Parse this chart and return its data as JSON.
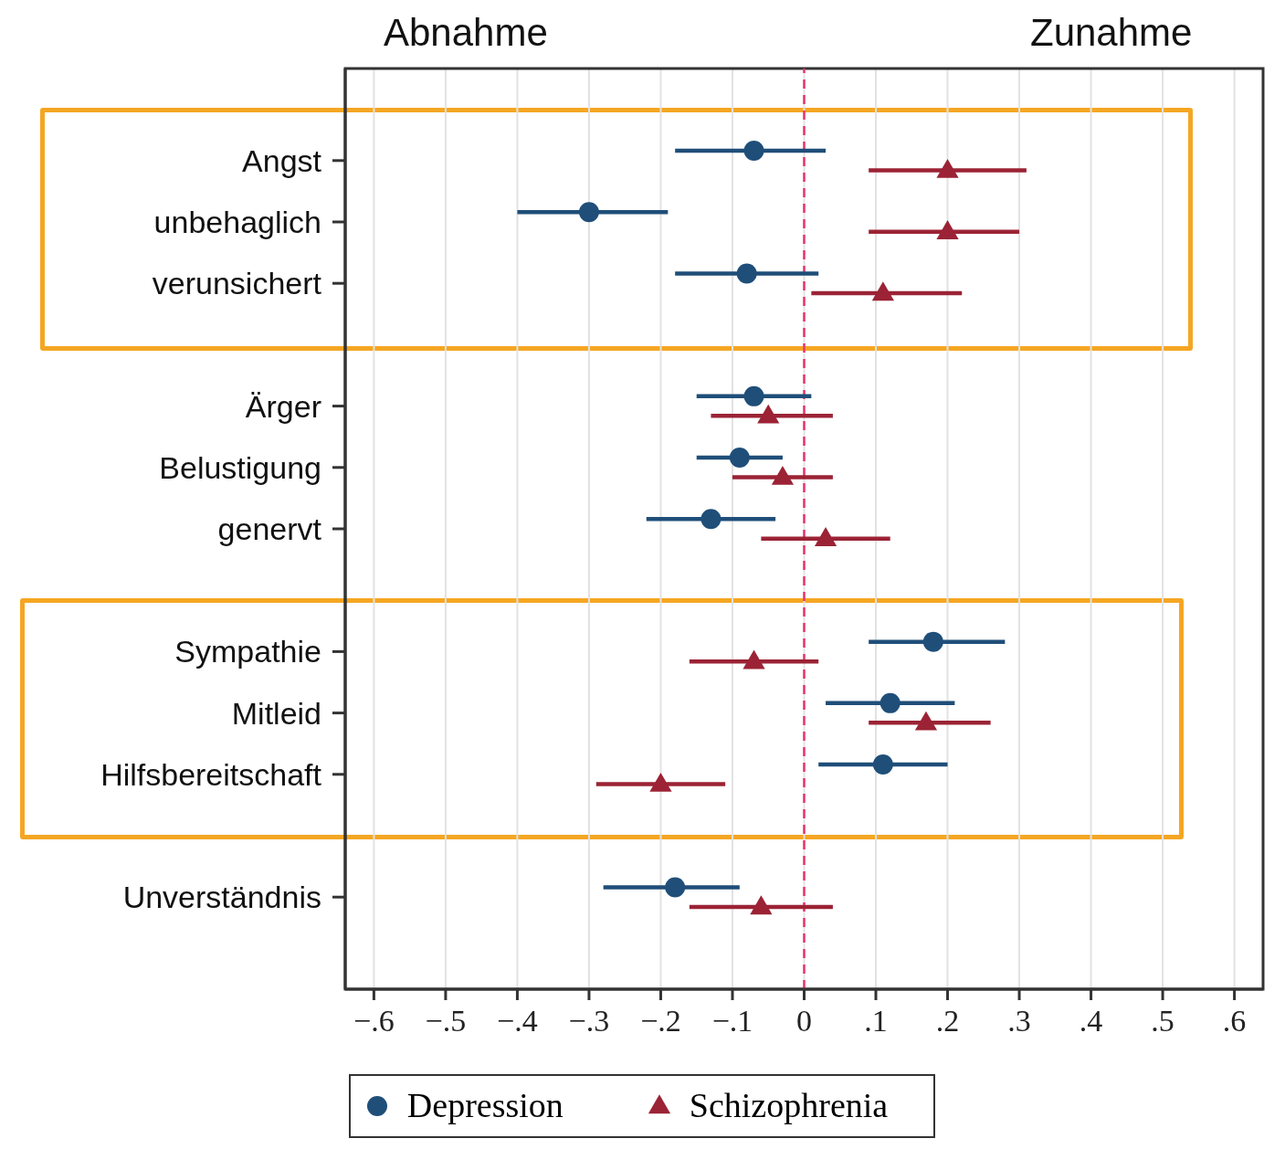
{
  "chart_data": {
    "type": "scatter",
    "orientation": "horizontal",
    "categories": [
      "Angst",
      "unbehaglich",
      "verunsichert",
      null,
      "Ärger",
      "Belustigung",
      "genervt",
      null,
      "Sympathie",
      "Mitleid",
      "Hilfsbereitschaft",
      null,
      "Unverständnis"
    ],
    "series": [
      {
        "name": "Depression",
        "color": "#1f4e79",
        "marker": "circle",
        "values": [
          -0.07,
          -0.3,
          -0.08,
          null,
          -0.07,
          -0.09,
          -0.13,
          null,
          0.18,
          0.12,
          0.11,
          null,
          -0.18
        ],
        "errors": [
          [
            -0.18,
            0.03
          ],
          [
            -0.4,
            -0.19
          ],
          [
            -0.18,
            0.02
          ],
          null,
          [
            -0.15,
            0.01
          ],
          [
            -0.15,
            -0.03
          ],
          [
            -0.22,
            -0.04
          ],
          null,
          [
            0.09,
            0.28
          ],
          [
            0.03,
            0.21
          ],
          [
            0.02,
            0.2
          ],
          null,
          [
            -0.28,
            -0.09
          ]
        ]
      },
      {
        "name": "Schizophrenia",
        "color": "#9b2335",
        "marker": "triangle",
        "values": [
          0.2,
          0.2,
          0.11,
          null,
          -0.05,
          -0.03,
          0.03,
          null,
          -0.07,
          0.17,
          -0.2,
          null,
          -0.06
        ],
        "errors": [
          [
            0.09,
            0.31
          ],
          [
            0.09,
            0.3
          ],
          [
            0.01,
            0.22
          ],
          null,
          [
            -0.13,
            0.04
          ],
          [
            -0.1,
            0.04
          ],
          [
            -0.06,
            0.12
          ],
          null,
          [
            -0.16,
            0.02
          ],
          [
            0.09,
            0.26
          ],
          [
            -0.29,
            -0.11
          ],
          null,
          [
            -0.16,
            0.04
          ]
        ]
      }
    ],
    "xlim": [
      -0.64,
      0.64
    ],
    "xticks": [
      {
        "value": -0.6,
        "label": "−.6"
      },
      {
        "value": -0.5,
        "label": "−.5"
      },
      {
        "value": -0.4,
        "label": "−.4"
      },
      {
        "value": -0.3,
        "label": "−.3"
      },
      {
        "value": -0.2,
        "label": "−.2"
      },
      {
        "value": -0.1,
        "label": "−.1"
      },
      0,
      {
        "value": 0.1,
        "label": ".1"
      },
      {
        "value": 0.2,
        "label": ".2"
      },
      {
        "value": 0.3,
        "label": ".3"
      },
      {
        "value": 0.4,
        "label": ".4"
      },
      {
        "value": 0.5,
        "label": ".5"
      },
      {
        "value": 0.6,
        "label": ".6"
      }
    ],
    "ref_lines": [
      {
        "axis": "x",
        "value": 0,
        "color": "#e8336b",
        "line_style": "dashed"
      }
    ],
    "annotations": [
      "Abnahme",
      "Zunahme"
    ],
    "grid": "x",
    "legend": "bottom"
  }
}
